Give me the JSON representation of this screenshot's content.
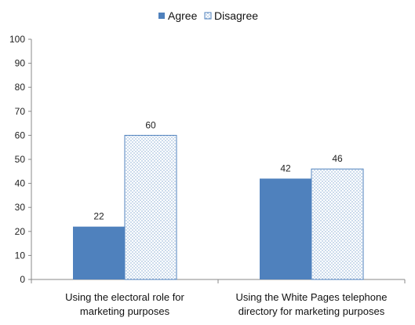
{
  "chart_data": {
    "type": "bar",
    "categories": [
      [
        "Using the electoral role for",
        "marketing purposes"
      ],
      [
        "Using the White Pages telephone",
        "directory for marketing purposes"
      ]
    ],
    "series": [
      {
        "name": "Agree",
        "values": [
          22,
          42
        ],
        "color": "#4f81bd",
        "pattern": "solid"
      },
      {
        "name": "Disagree",
        "values": [
          60,
          46
        ],
        "color": "#ffffff",
        "pattern": "dots"
      }
    ],
    "ylim": [
      0,
      100
    ],
    "yticks": [
      0,
      10,
      20,
      30,
      40,
      50,
      60,
      70,
      80,
      90,
      100
    ],
    "grid": false,
    "legend_position": "top",
    "title": "",
    "xlabel": "",
    "ylabel": ""
  }
}
